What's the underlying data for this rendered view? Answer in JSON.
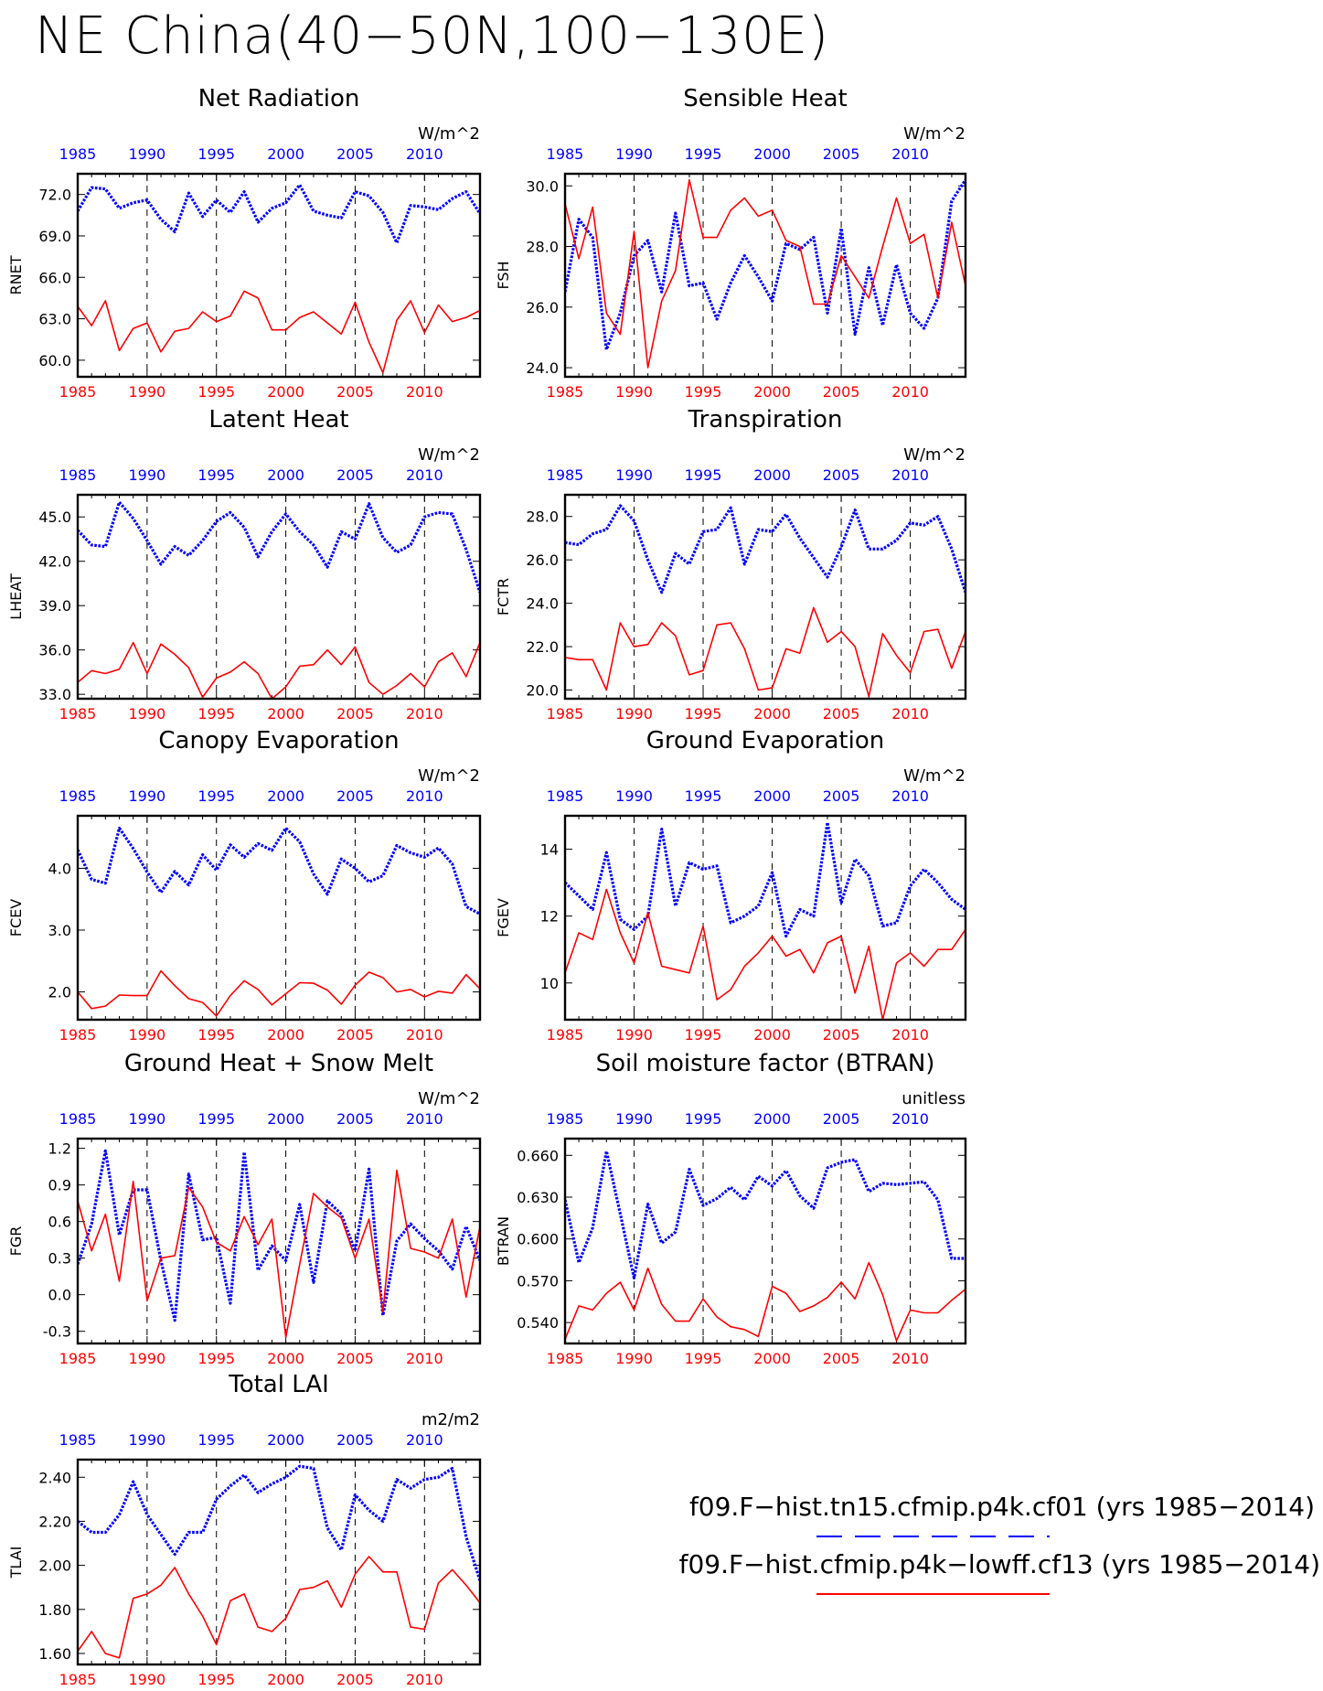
{
  "title": "NE China(40−50N,100−130E)",
  "colors": {
    "blue": "#0000ff",
    "red": "#ff0000",
    "axis": "#000000"
  },
  "years": [
    1985,
    1986,
    1987,
    1988,
    1989,
    1990,
    1991,
    1992,
    1993,
    1994,
    1995,
    1996,
    1997,
    1998,
    1999,
    2000,
    2001,
    2002,
    2003,
    2004,
    2005,
    2006,
    2007,
    2008,
    2009,
    2010,
    2011,
    2012,
    2013,
    2014
  ],
  "x_tick_labels": [
    "1985",
    "1990",
    "1995",
    "2000",
    "2005",
    "2010"
  ],
  "legend": [
    {
      "label": "f09.F−hist.tn15.cfmip.p4k.cf01 (yrs 1985−2014)",
      "color": "#0000ff",
      "style": "dashed"
    },
    {
      "label": "f09.F−hist.cfmip.p4k−lowff.cf13 (yrs 1985−2014)",
      "color": "#ff0000",
      "style": "solid"
    }
  ],
  "chart_data": [
    {
      "type": "line",
      "title": "Net Radiation",
      "ylabel": "RNET",
      "units": "W/m^2",
      "ylim": [
        58.8,
        73.5
      ],
      "yticks": [
        "60.0",
        "63.0",
        "66.0",
        "69.0",
        "72.0"
      ],
      "series": [
        {
          "color": "#0000ff",
          "values": [
            70.8,
            72.5,
            72.4,
            71.0,
            71.4,
            71.6,
            70.2,
            69.3,
            72.1,
            70.4,
            71.6,
            70.7,
            72.2,
            70.0,
            71.0,
            71.4,
            72.7,
            70.8,
            70.5,
            70.3,
            72.2,
            71.9,
            70.7,
            68.5,
            71.2,
            71.1,
            70.9,
            71.7,
            72.2,
            70.6
          ]
        },
        {
          "color": "#ff0000",
          "values": [
            63.9,
            62.5,
            64.3,
            60.7,
            62.3,
            62.7,
            60.6,
            62.1,
            62.3,
            63.5,
            62.8,
            63.2,
            65.0,
            64.5,
            62.2,
            62.2,
            63.1,
            63.5,
            62.7,
            61.9,
            64.2,
            61.3,
            59.1,
            62.9,
            64.3,
            62.0,
            64.0,
            62.8,
            63.1,
            63.6
          ]
        }
      ]
    },
    {
      "type": "line",
      "title": "Sensible Heat",
      "ylabel": "FSH",
      "units": "W/m^2",
      "ylim": [
        23.7,
        30.4
      ],
      "yticks": [
        "24.0",
        "26.0",
        "28.0",
        "30.0"
      ],
      "series": [
        {
          "color": "#0000ff",
          "values": [
            26.5,
            28.9,
            28.3,
            24.6,
            25.8,
            27.7,
            28.2,
            26.5,
            29.1,
            26.7,
            26.8,
            25.6,
            26.8,
            27.7,
            27.0,
            26.2,
            28.1,
            27.9,
            28.3,
            25.8,
            28.6,
            25.1,
            27.3,
            25.4,
            27.4,
            25.8,
            25.3,
            26.3,
            29.5,
            30.2
          ]
        },
        {
          "color": "#ff0000",
          "values": [
            29.4,
            27.6,
            29.3,
            25.8,
            25.1,
            28.5,
            24.0,
            26.2,
            27.2,
            30.2,
            28.3,
            28.3,
            29.2,
            29.6,
            29.0,
            29.2,
            28.2,
            28.0,
            26.1,
            26.1,
            27.7,
            27.0,
            26.3,
            28.0,
            29.6,
            28.1,
            28.4,
            26.3,
            28.8,
            26.7
          ]
        }
      ]
    },
    {
      "type": "line",
      "title": "Latent Heat",
      "ylabel": "LHEAT",
      "units": "W/m^2",
      "ylim": [
        32.7,
        46.5
      ],
      "yticks": [
        "33.0",
        "36.0",
        "39.0",
        "42.0",
        "45.0"
      ],
      "series": [
        {
          "color": "#0000ff",
          "values": [
            44.1,
            43.1,
            43.0,
            46.0,
            44.9,
            43.4,
            41.8,
            43.0,
            42.4,
            43.4,
            44.7,
            45.3,
            44.3,
            42.3,
            44.0,
            45.2,
            44.0,
            43.1,
            41.6,
            44.0,
            43.5,
            45.9,
            43.6,
            42.6,
            43.1,
            45.0,
            45.3,
            45.2,
            42.8,
            39.9
          ]
        },
        {
          "color": "#ff0000",
          "values": [
            33.8,
            34.6,
            34.4,
            34.7,
            36.5,
            34.4,
            36.4,
            35.7,
            34.8,
            32.8,
            34.1,
            34.5,
            35.2,
            34.4,
            32.7,
            33.5,
            34.9,
            35.0,
            36.0,
            35.0,
            36.2,
            33.8,
            33.0,
            33.6,
            34.4,
            33.5,
            35.2,
            35.8,
            34.2,
            36.5
          ]
        }
      ]
    },
    {
      "type": "line",
      "title": "Transpiration",
      "ylabel": "FCTR",
      "units": "W/m^2",
      "ylim": [
        19.6,
        29.0
      ],
      "yticks": [
        "20.0",
        "22.0",
        "24.0",
        "26.0",
        "28.0"
      ],
      "series": [
        {
          "color": "#0000ff",
          "values": [
            26.8,
            26.7,
            27.2,
            27.4,
            28.5,
            27.8,
            26.0,
            24.5,
            26.3,
            25.8,
            27.3,
            27.4,
            28.4,
            25.8,
            27.4,
            27.3,
            28.1,
            27.0,
            26.1,
            25.2,
            26.6,
            28.3,
            26.5,
            26.5,
            26.9,
            27.7,
            27.6,
            28.0,
            26.5,
            24.5
          ]
        },
        {
          "color": "#ff0000",
          "values": [
            21.5,
            21.4,
            21.4,
            20.0,
            23.1,
            22.0,
            22.1,
            23.1,
            22.5,
            20.7,
            20.9,
            23.0,
            23.1,
            21.9,
            20.0,
            20.1,
            21.9,
            21.7,
            23.8,
            22.2,
            22.7,
            22.0,
            19.7,
            22.6,
            21.6,
            20.8,
            22.7,
            22.8,
            21.0,
            22.7
          ]
        }
      ]
    },
    {
      "type": "line",
      "title": "Canopy Evaporation",
      "ylabel": "FCEV",
      "units": "W/m^2",
      "ylim": [
        1.55,
        4.85
      ],
      "yticks": [
        "2.0",
        "3.0",
        "4.0"
      ],
      "series": [
        {
          "color": "#0000ff",
          "values": [
            4.3,
            3.82,
            3.76,
            4.65,
            4.32,
            3.94,
            3.61,
            3.95,
            3.73,
            4.22,
            3.97,
            4.38,
            4.18,
            4.4,
            4.29,
            4.65,
            4.43,
            3.91,
            3.58,
            4.15,
            4.0,
            3.78,
            3.88,
            4.37,
            4.25,
            4.18,
            4.33,
            4.07,
            3.38,
            3.26
          ]
        },
        {
          "color": "#ff0000",
          "values": [
            2.0,
            1.73,
            1.77,
            1.95,
            1.94,
            1.94,
            2.34,
            2.1,
            1.89,
            1.83,
            1.61,
            1.94,
            2.18,
            2.04,
            1.79,
            1.97,
            2.15,
            2.14,
            2.03,
            1.8,
            2.11,
            2.32,
            2.23,
            2.0,
            2.04,
            1.92,
            2.01,
            1.98,
            2.28,
            2.05
          ]
        }
      ]
    },
    {
      "type": "line",
      "title": "Ground Evaporation",
      "ylabel": "FGEV",
      "units": "W/m^2",
      "ylim": [
        8.9,
        15.0
      ],
      "yticks": [
        "10",
        "12",
        "14"
      ],
      "series": [
        {
          "color": "#0000ff",
          "values": [
            13.0,
            12.6,
            12.2,
            13.9,
            11.9,
            11.6,
            12.0,
            14.6,
            12.3,
            13.6,
            13.4,
            13.5,
            11.8,
            12.0,
            12.3,
            13.3,
            11.4,
            12.2,
            12.0,
            14.8,
            12.4,
            13.7,
            13.2,
            11.7,
            11.8,
            12.9,
            13.4,
            13.0,
            12.5,
            12.2
          ]
        },
        {
          "color": "#ff0000",
          "values": [
            10.3,
            11.5,
            11.3,
            12.8,
            11.5,
            10.6,
            12.1,
            10.5,
            10.4,
            10.3,
            11.7,
            9.5,
            9.8,
            10.5,
            10.9,
            11.4,
            10.8,
            11.0,
            10.3,
            11.2,
            11.4,
            9.7,
            11.1,
            8.9,
            10.6,
            10.9,
            10.5,
            11.0,
            11.0,
            11.6
          ]
        }
      ]
    },
    {
      "type": "line",
      "title": "Ground Heat + Snow Melt",
      "ylabel": "FGR",
      "units": "W/m^2",
      "ylim": [
        -0.4,
        1.28
      ],
      "yticks": [
        "-0.3",
        "0.0",
        "0.3",
        "0.6",
        "0.9",
        "1.2"
      ],
      "series": [
        {
          "color": "#0000ff",
          "values": [
            0.25,
            0.58,
            1.18,
            0.49,
            0.86,
            0.86,
            0.28,
            -0.21,
            0.99,
            0.45,
            0.47,
            -0.07,
            1.17,
            0.2,
            0.4,
            0.28,
            0.74,
            0.1,
            0.77,
            0.66,
            0.36,
            1.03,
            -0.17,
            0.44,
            0.58,
            0.46,
            0.36,
            0.21,
            0.56,
            0.28
          ]
        },
        {
          "color": "#ff0000",
          "values": [
            0.77,
            0.36,
            0.66,
            0.11,
            0.93,
            -0.05,
            0.3,
            0.32,
            0.88,
            0.72,
            0.43,
            0.36,
            0.64,
            0.41,
            0.62,
            -0.35,
            0.25,
            0.83,
            0.72,
            0.63,
            0.3,
            0.62,
            -0.14,
            1.02,
            0.38,
            0.35,
            0.3,
            0.62,
            -0.02,
            0.56
          ]
        }
      ]
    },
    {
      "type": "line",
      "title": "Soil moisture factor (BTRAN)",
      "ylabel": "BTRAN",
      "units": "unitless",
      "ylim": [
        0.525,
        0.672
      ],
      "yticks": [
        "0.540",
        "0.570",
        "0.600",
        "0.630",
        "0.660"
      ],
      "series": [
        {
          "color": "#0000ff",
          "values": [
            0.628,
            0.583,
            0.608,
            0.663,
            0.618,
            0.572,
            0.625,
            0.597,
            0.605,
            0.65,
            0.624,
            0.629,
            0.637,
            0.628,
            0.645,
            0.638,
            0.649,
            0.631,
            0.622,
            0.651,
            0.655,
            0.657,
            0.634,
            0.64,
            0.639,
            0.64,
            0.641,
            0.628,
            0.586,
            0.586
          ]
        },
        {
          "color": "#ff0000",
          "values": [
            0.528,
            0.552,
            0.549,
            0.561,
            0.569,
            0.549,
            0.579,
            0.553,
            0.541,
            0.541,
            0.557,
            0.544,
            0.537,
            0.535,
            0.53,
            0.566,
            0.561,
            0.548,
            0.552,
            0.558,
            0.569,
            0.557,
            0.583,
            0.56,
            0.527,
            0.549,
            0.547,
            0.547,
            0.556,
            0.564
          ]
        }
      ]
    },
    {
      "type": "line",
      "title": "Total LAI",
      "ylabel": "TLAI",
      "units": "m2/m2",
      "ylim": [
        1.55,
        2.48
      ],
      "yticks": [
        "1.60",
        "1.80",
        "2.00",
        "2.20",
        "2.40"
      ],
      "series": [
        {
          "color": "#0000ff",
          "values": [
            2.2,
            2.15,
            2.15,
            2.23,
            2.38,
            2.23,
            2.14,
            2.05,
            2.15,
            2.15,
            2.3,
            2.36,
            2.41,
            2.33,
            2.37,
            2.4,
            2.45,
            2.44,
            2.17,
            2.07,
            2.32,
            2.25,
            2.2,
            2.39,
            2.35,
            2.39,
            2.4,
            2.44,
            2.13,
            1.93
          ]
        },
        {
          "color": "#ff0000",
          "values": [
            1.61,
            1.7,
            1.6,
            1.58,
            1.85,
            1.87,
            1.91,
            1.99,
            1.87,
            1.77,
            1.64,
            1.84,
            1.87,
            1.72,
            1.7,
            1.76,
            1.89,
            1.9,
            1.93,
            1.81,
            1.96,
            2.04,
            1.97,
            1.97,
            1.72,
            1.71,
            1.92,
            1.98,
            1.91,
            1.83
          ]
        }
      ]
    }
  ]
}
